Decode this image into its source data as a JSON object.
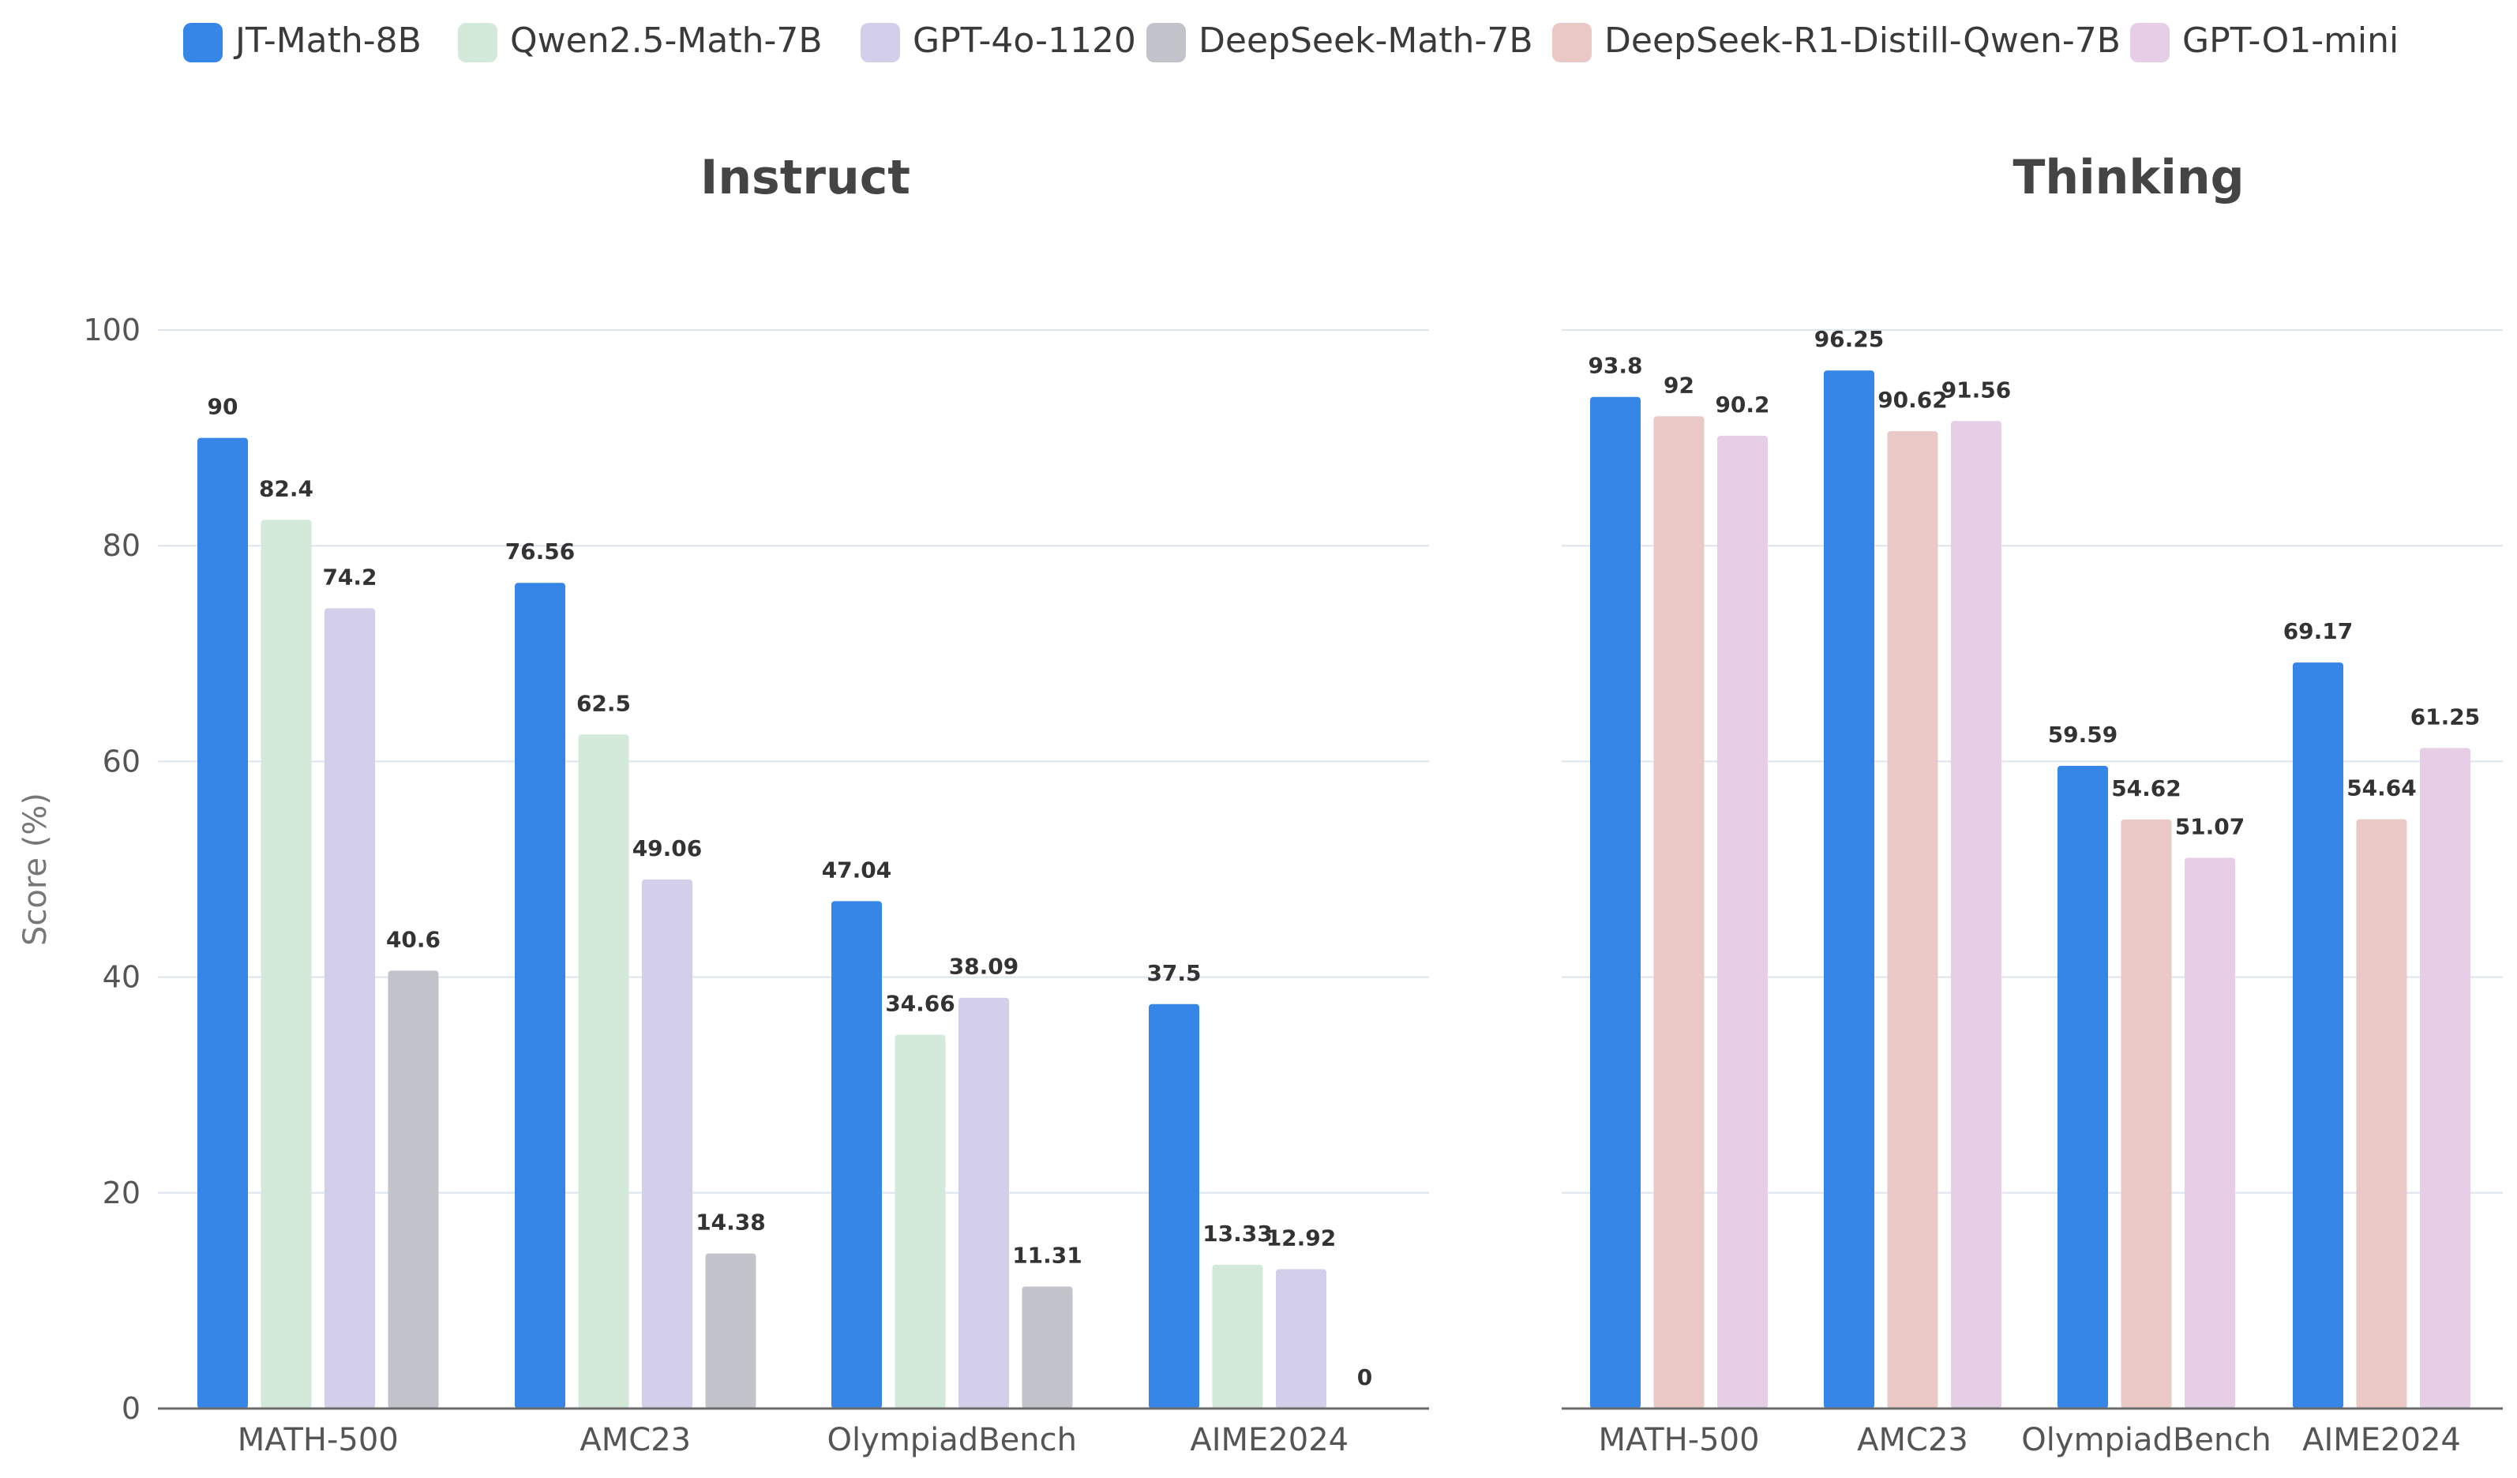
{
  "legend": [
    {
      "name": "JT-Math-8B",
      "color": "#3686e8"
    },
    {
      "name": "Qwen2.5-Math-7B",
      "color": "#d3eadb"
    },
    {
      "name": "GPT-4o-1120",
      "color": "#d3cfea"
    },
    {
      "name": "DeepSeek-Math-7B",
      "color": "#c3c3cb"
    },
    {
      "name": "DeepSeek-R1-Distill-Qwen-7B",
      "color": "#e9c8c5"
    },
    {
      "name": "GPT-O1-mini",
      "color": "#e7cee7"
    }
  ],
  "chart_data": [
    {
      "type": "bar",
      "title": "Instruct",
      "ylabel": "Score (%)",
      "ylim": [
        0,
        100
      ],
      "yticks": [
        0,
        20,
        40,
        60,
        80,
        100
      ],
      "grid": true,
      "legend_position": "top",
      "categories": [
        "MATH-500",
        "AMC23",
        "OlympiadBench",
        "AIME2024"
      ],
      "series": [
        {
          "name": "JT-Math-8B",
          "color": "#3686e8",
          "values": [
            90,
            76.56,
            47.04,
            37.5
          ],
          "labels": [
            "90",
            "76.56",
            "47.04",
            "37.5"
          ]
        },
        {
          "name": "Qwen2.5-Math-7B",
          "color": "#d3eadb",
          "values": [
            82.4,
            62.5,
            34.66,
            13.33
          ],
          "labels": [
            "82.4",
            "62.5",
            "34.66",
            "13.33"
          ]
        },
        {
          "name": "GPT-4o-1120",
          "color": "#d3cfea",
          "values": [
            74.2,
            49.06,
            38.09,
            12.92
          ],
          "labels": [
            "74.2",
            "49.06",
            "38.09",
            "12.92"
          ]
        },
        {
          "name": "DeepSeek-Math-7B",
          "color": "#c3c3cb",
          "values": [
            40.6,
            14.38,
            11.31,
            0
          ],
          "labels": [
            "40.6",
            "14.38",
            "11.31",
            "0"
          ]
        }
      ]
    },
    {
      "type": "bar",
      "title": "Thinking",
      "ylim": [
        0,
        100
      ],
      "yticks": [
        0,
        20,
        40,
        60,
        80,
        100
      ],
      "grid": true,
      "categories": [
        "MATH-500",
        "AMC23",
        "OlympiadBench",
        "AIME2024"
      ],
      "series": [
        {
          "name": "JT-Math-8B",
          "color": "#3686e8",
          "values": [
            93.8,
            96.25,
            59.59,
            69.17
          ],
          "labels": [
            "93.8",
            "96.25",
            "59.59",
            "69.17"
          ]
        },
        {
          "name": "DeepSeek-R1-Distill-Qwen-7B",
          "color": "#e9c8c5",
          "values": [
            92,
            90.62,
            54.62,
            54.64
          ],
          "labels": [
            "92",
            "90.62",
            "54.62",
            "54.64"
          ]
        },
        {
          "name": "GPT-O1-mini",
          "color": "#e7cee7",
          "values": [
            90.2,
            91.56,
            51.07,
            61.25
          ],
          "labels": [
            "90.2",
            "91.56",
            "51.07",
            "61.25"
          ]
        }
      ]
    }
  ]
}
